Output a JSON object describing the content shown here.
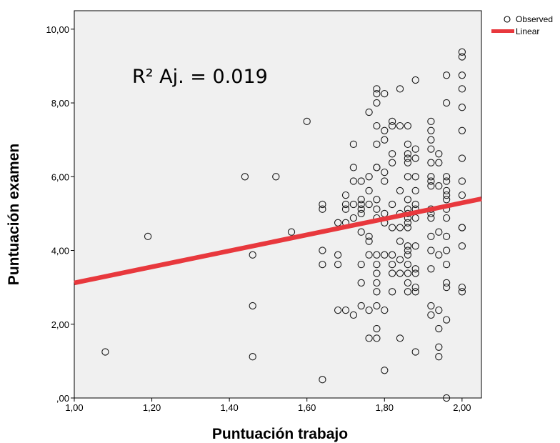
{
  "chart_data": {
    "type": "scatter",
    "title": "",
    "xlabel": "Puntuación trabajo",
    "ylabel": "Puntuación examen",
    "xlim": [
      1.0,
      2.05
    ],
    "ylim": [
      0.0,
      10.5
    ],
    "x_ticks": [
      1.0,
      1.2,
      1.4,
      1.6,
      1.8,
      2.0
    ],
    "x_tick_labels": [
      "1,00",
      "1,20",
      "1,40",
      "1,60",
      "1,80",
      "2,00"
    ],
    "y_ticks": [
      0,
      2,
      4,
      6,
      8,
      10
    ],
    "y_tick_labels": [
      ",00",
      "2,00",
      "4,00",
      "6,00",
      "8,00",
      "10,00"
    ],
    "grid": false,
    "background_color": "#f0f0f0",
    "annotation": "R² Aj. = 0.019",
    "legend": {
      "placement": "top-right-outside",
      "entries": [
        {
          "label": "Observed",
          "marker": "circle"
        },
        {
          "label": "Linear",
          "marker": "line",
          "color": "#e8383d"
        }
      ]
    },
    "series": [
      {
        "name": "Observed",
        "type": "scatter",
        "points": [
          [
            1.08,
            1.25
          ],
          [
            1.19,
            4.38
          ],
          [
            1.44,
            6.0
          ],
          [
            1.46,
            3.88
          ],
          [
            1.46,
            2.5
          ],
          [
            1.46,
            1.12
          ],
          [
            1.52,
            6.0
          ],
          [
            1.56,
            4.5
          ],
          [
            1.6,
            7.5
          ],
          [
            1.64,
            5.25
          ],
          [
            1.64,
            5.12
          ],
          [
            1.64,
            4.0
          ],
          [
            1.64,
            3.62
          ],
          [
            1.64,
            0.5
          ],
          [
            1.68,
            4.75
          ],
          [
            1.68,
            3.88
          ],
          [
            1.68,
            3.62
          ],
          [
            1.68,
            2.38
          ],
          [
            1.7,
            5.5
          ],
          [
            1.7,
            5.25
          ],
          [
            1.7,
            5.12
          ],
          [
            1.7,
            4.75
          ],
          [
            1.7,
            2.38
          ],
          [
            1.72,
            6.88
          ],
          [
            1.72,
            6.25
          ],
          [
            1.72,
            5.88
          ],
          [
            1.72,
            5.25
          ],
          [
            1.72,
            4.88
          ],
          [
            1.72,
            2.25
          ],
          [
            1.74,
            5.88
          ],
          [
            1.74,
            5.38
          ],
          [
            1.74,
            5.25
          ],
          [
            1.74,
            5.12
          ],
          [
            1.74,
            5.0
          ],
          [
            1.74,
            4.5
          ],
          [
            1.74,
            3.62
          ],
          [
            1.74,
            3.12
          ],
          [
            1.74,
            2.5
          ],
          [
            1.76,
            7.75
          ],
          [
            1.76,
            6.0
          ],
          [
            1.76,
            5.62
          ],
          [
            1.76,
            5.25
          ],
          [
            1.76,
            4.38
          ],
          [
            1.76,
            4.25
          ],
          [
            1.76,
            3.88
          ],
          [
            1.76,
            2.38
          ],
          [
            1.76,
            1.62
          ],
          [
            1.78,
            8.38
          ],
          [
            1.78,
            8.25
          ],
          [
            1.78,
            8.0
          ],
          [
            1.78,
            7.38
          ],
          [
            1.78,
            6.88
          ],
          [
            1.78,
            6.25
          ],
          [
            1.78,
            6.25
          ],
          [
            1.78,
            5.38
          ],
          [
            1.78,
            5.12
          ],
          [
            1.78,
            4.88
          ],
          [
            1.78,
            3.88
          ],
          [
            1.78,
            3.62
          ],
          [
            1.78,
            3.38
          ],
          [
            1.78,
            3.12
          ],
          [
            1.78,
            2.88
          ],
          [
            1.78,
            2.5
          ],
          [
            1.78,
            1.88
          ],
          [
            1.78,
            1.62
          ],
          [
            1.8,
            8.25
          ],
          [
            1.8,
            7.25
          ],
          [
            1.8,
            7.0
          ],
          [
            1.8,
            6.12
          ],
          [
            1.8,
            5.88
          ],
          [
            1.8,
            5.0
          ],
          [
            1.8,
            4.75
          ],
          [
            1.8,
            3.88
          ],
          [
            1.8,
            2.38
          ],
          [
            1.8,
            0.75
          ],
          [
            1.82,
            7.5
          ],
          [
            1.82,
            7.38
          ],
          [
            1.82,
            6.62
          ],
          [
            1.82,
            6.38
          ],
          [
            1.82,
            5.25
          ],
          [
            1.82,
            4.62
          ],
          [
            1.82,
            3.88
          ],
          [
            1.82,
            3.62
          ],
          [
            1.82,
            3.38
          ],
          [
            1.82,
            2.88
          ],
          [
            1.84,
            8.38
          ],
          [
            1.84,
            7.38
          ],
          [
            1.84,
            5.62
          ],
          [
            1.84,
            5.0
          ],
          [
            1.84,
            4.62
          ],
          [
            1.84,
            4.25
          ],
          [
            1.84,
            3.75
          ],
          [
            1.84,
            3.38
          ],
          [
            1.84,
            1.62
          ],
          [
            1.86,
            7.38
          ],
          [
            1.86,
            6.88
          ],
          [
            1.86,
            6.62
          ],
          [
            1.86,
            6.5
          ],
          [
            1.86,
            6.38
          ],
          [
            1.86,
            6.0
          ],
          [
            1.86,
            5.38
          ],
          [
            1.86,
            5.12
          ],
          [
            1.86,
            5.0
          ],
          [
            1.86,
            4.88
          ],
          [
            1.86,
            4.75
          ],
          [
            1.86,
            4.62
          ],
          [
            1.86,
            4.12
          ],
          [
            1.86,
            4.0
          ],
          [
            1.86,
            3.88
          ],
          [
            1.86,
            3.62
          ],
          [
            1.86,
            3.38
          ],
          [
            1.86,
            3.12
          ],
          [
            1.86,
            2.88
          ],
          [
            1.88,
            8.62
          ],
          [
            1.88,
            6.75
          ],
          [
            1.88,
            6.5
          ],
          [
            1.88,
            6.0
          ],
          [
            1.88,
            5.62
          ],
          [
            1.88,
            5.25
          ],
          [
            1.88,
            5.12
          ],
          [
            1.88,
            4.88
          ],
          [
            1.88,
            4.12
          ],
          [
            1.88,
            3.5
          ],
          [
            1.88,
            3.38
          ],
          [
            1.88,
            3.0
          ],
          [
            1.88,
            2.88
          ],
          [
            1.88,
            1.25
          ],
          [
            1.92,
            7.5
          ],
          [
            1.92,
            7.25
          ],
          [
            1.92,
            7.0
          ],
          [
            1.92,
            6.75
          ],
          [
            1.92,
            6.38
          ],
          [
            1.92,
            6.0
          ],
          [
            1.92,
            5.88
          ],
          [
            1.92,
            5.75
          ],
          [
            1.92,
            5.12
          ],
          [
            1.92,
            5.0
          ],
          [
            1.92,
            4.88
          ],
          [
            1.92,
            4.38
          ],
          [
            1.92,
            4.0
          ],
          [
            1.92,
            3.5
          ],
          [
            1.92,
            2.5
          ],
          [
            1.92,
            2.25
          ],
          [
            1.94,
            6.62
          ],
          [
            1.94,
            6.38
          ],
          [
            1.94,
            5.75
          ],
          [
            1.94,
            4.5
          ],
          [
            1.94,
            3.88
          ],
          [
            1.94,
            2.38
          ],
          [
            1.94,
            1.88
          ],
          [
            1.94,
            1.38
          ],
          [
            1.94,
            1.12
          ],
          [
            1.96,
            8.75
          ],
          [
            1.96,
            8.0
          ],
          [
            1.96,
            6.0
          ],
          [
            1.96,
            5.88
          ],
          [
            1.96,
            5.62
          ],
          [
            1.96,
            5.5
          ],
          [
            1.96,
            5.38
          ],
          [
            1.96,
            5.12
          ],
          [
            1.96,
            4.88
          ],
          [
            1.96,
            4.38
          ],
          [
            1.96,
            4.0
          ],
          [
            1.96,
            3.62
          ],
          [
            1.96,
            3.12
          ],
          [
            1.96,
            3.0
          ],
          [
            1.96,
            2.12
          ],
          [
            1.96,
            0.0
          ],
          [
            2.0,
            9.38
          ],
          [
            2.0,
            9.25
          ],
          [
            2.0,
            8.75
          ],
          [
            2.0,
            8.38
          ],
          [
            2.0,
            7.88
          ],
          [
            2.0,
            7.25
          ],
          [
            2.0,
            6.5
          ],
          [
            2.0,
            5.88
          ],
          [
            2.0,
            5.5
          ],
          [
            2.0,
            4.62
          ],
          [
            2.0,
            4.62
          ],
          [
            2.0,
            4.12
          ],
          [
            2.0,
            3.0
          ],
          [
            2.0,
            2.88
          ]
        ]
      },
      {
        "name": "Linear",
        "type": "line",
        "color": "#e8383d",
        "points": [
          [
            1.0,
            3.12
          ],
          [
            2.05,
            5.4
          ]
        ]
      }
    ]
  }
}
